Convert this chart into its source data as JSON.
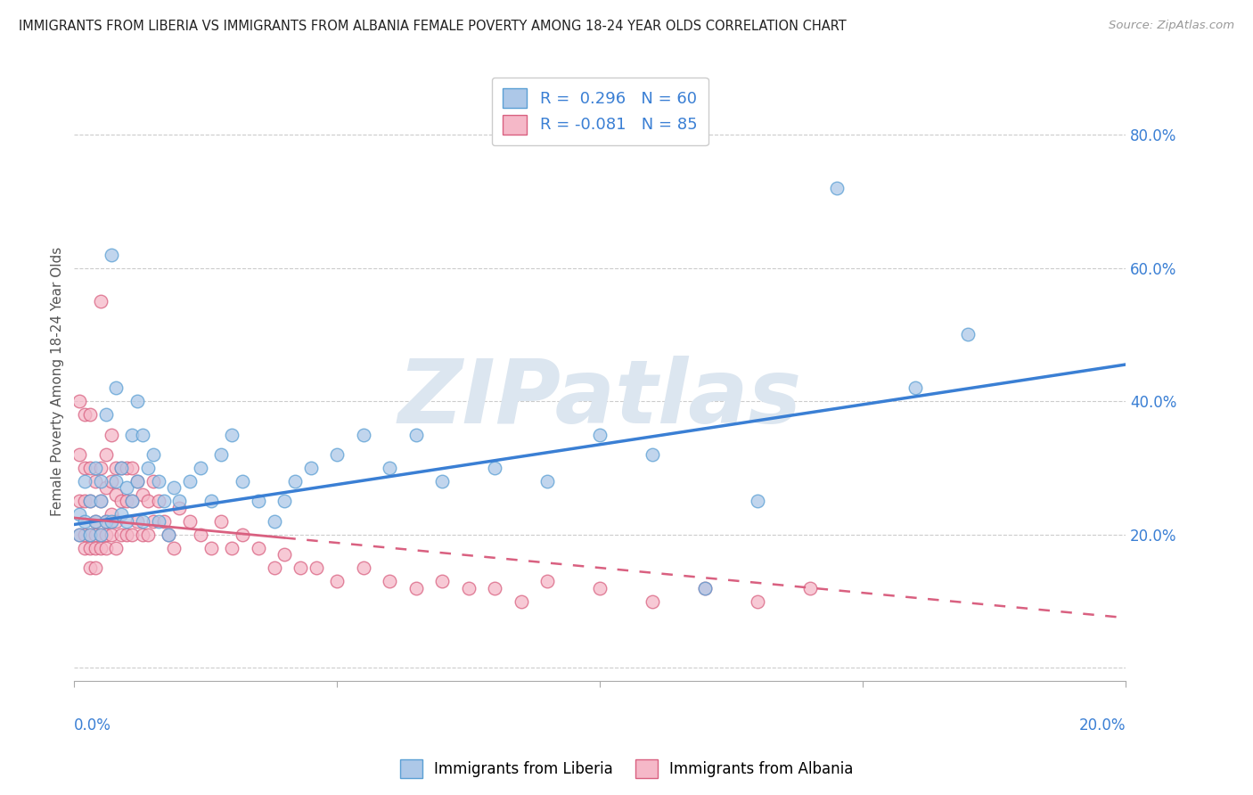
{
  "title": "IMMIGRANTS FROM LIBERIA VS IMMIGRANTS FROM ALBANIA FEMALE POVERTY AMONG 18-24 YEAR OLDS CORRELATION CHART",
  "source": "Source: ZipAtlas.com",
  "ylabel": "Female Poverty Among 18-24 Year Olds",
  "ytick_vals": [
    0.0,
    0.2,
    0.4,
    0.6,
    0.8
  ],
  "xlim": [
    0,
    0.2
  ],
  "ylim": [
    -0.02,
    0.88
  ],
  "liberia_R": 0.296,
  "liberia_N": 60,
  "albania_R": -0.081,
  "albania_N": 85,
  "liberia_color": "#adc8e8",
  "liberia_edge": "#5a9fd4",
  "albania_color": "#f5b8c8",
  "albania_edge": "#d96080",
  "line_liberia_color": "#3a7fd4",
  "line_albania_color": "#d96080",
  "watermark_color": "#dce6f0",
  "background_color": "#ffffff",
  "legend_label_liberia": "Immigrants from Liberia",
  "legend_label_albania": "Immigrants from Albania",
  "lib_line_x0": 0.0,
  "lib_line_y0": 0.215,
  "lib_line_x1": 0.2,
  "lib_line_y1": 0.455,
  "alb_line_solid_x0": 0.0,
  "alb_line_solid_y0": 0.225,
  "alb_line_solid_x1": 0.04,
  "alb_line_solid_y1": 0.195,
  "alb_line_dash_x0": 0.04,
  "alb_line_dash_y0": 0.195,
  "alb_line_dash_x1": 0.2,
  "alb_line_dash_y1": 0.075,
  "liberia_x": [
    0.001,
    0.001,
    0.002,
    0.002,
    0.003,
    0.003,
    0.004,
    0.004,
    0.005,
    0.005,
    0.005,
    0.006,
    0.006,
    0.007,
    0.007,
    0.008,
    0.008,
    0.009,
    0.009,
    0.01,
    0.01,
    0.011,
    0.011,
    0.012,
    0.012,
    0.013,
    0.013,
    0.014,
    0.015,
    0.016,
    0.016,
    0.017,
    0.018,
    0.019,
    0.02,
    0.022,
    0.024,
    0.026,
    0.028,
    0.03,
    0.032,
    0.035,
    0.038,
    0.04,
    0.042,
    0.045,
    0.05,
    0.055,
    0.06,
    0.065,
    0.07,
    0.08,
    0.09,
    0.1,
    0.11,
    0.12,
    0.13,
    0.145,
    0.16,
    0.17
  ],
  "liberia_y": [
    0.23,
    0.2,
    0.28,
    0.22,
    0.25,
    0.2,
    0.3,
    0.22,
    0.25,
    0.28,
    0.2,
    0.38,
    0.22,
    0.62,
    0.22,
    0.42,
    0.28,
    0.3,
    0.23,
    0.27,
    0.22,
    0.35,
    0.25,
    0.4,
    0.28,
    0.35,
    0.22,
    0.3,
    0.32,
    0.28,
    0.22,
    0.25,
    0.2,
    0.27,
    0.25,
    0.28,
    0.3,
    0.25,
    0.32,
    0.35,
    0.28,
    0.25,
    0.22,
    0.25,
    0.28,
    0.3,
    0.32,
    0.35,
    0.3,
    0.35,
    0.28,
    0.3,
    0.28,
    0.35,
    0.32,
    0.12,
    0.25,
    0.72,
    0.42,
    0.5
  ],
  "albania_x": [
    0.001,
    0.001,
    0.001,
    0.001,
    0.002,
    0.002,
    0.002,
    0.002,
    0.002,
    0.003,
    0.003,
    0.003,
    0.003,
    0.003,
    0.003,
    0.004,
    0.004,
    0.004,
    0.004,
    0.004,
    0.005,
    0.005,
    0.005,
    0.005,
    0.005,
    0.006,
    0.006,
    0.006,
    0.006,
    0.006,
    0.007,
    0.007,
    0.007,
    0.007,
    0.008,
    0.008,
    0.008,
    0.008,
    0.009,
    0.009,
    0.009,
    0.01,
    0.01,
    0.01,
    0.011,
    0.011,
    0.011,
    0.012,
    0.012,
    0.013,
    0.013,
    0.014,
    0.014,
    0.015,
    0.015,
    0.016,
    0.017,
    0.018,
    0.019,
    0.02,
    0.022,
    0.024,
    0.026,
    0.028,
    0.03,
    0.032,
    0.035,
    0.038,
    0.04,
    0.043,
    0.046,
    0.05,
    0.055,
    0.06,
    0.065,
    0.07,
    0.075,
    0.08,
    0.085,
    0.09,
    0.1,
    0.11,
    0.12,
    0.13,
    0.14
  ],
  "albania_y": [
    0.4,
    0.32,
    0.25,
    0.2,
    0.38,
    0.3,
    0.25,
    0.2,
    0.18,
    0.38,
    0.3,
    0.25,
    0.2,
    0.18,
    0.15,
    0.28,
    0.22,
    0.2,
    0.18,
    0.15,
    0.55,
    0.3,
    0.25,
    0.2,
    0.18,
    0.32,
    0.27,
    0.22,
    0.2,
    0.18,
    0.35,
    0.28,
    0.23,
    0.2,
    0.3,
    0.26,
    0.22,
    0.18,
    0.3,
    0.25,
    0.2,
    0.3,
    0.25,
    0.2,
    0.3,
    0.25,
    0.2,
    0.28,
    0.22,
    0.26,
    0.2,
    0.25,
    0.2,
    0.28,
    0.22,
    0.25,
    0.22,
    0.2,
    0.18,
    0.24,
    0.22,
    0.2,
    0.18,
    0.22,
    0.18,
    0.2,
    0.18,
    0.15,
    0.17,
    0.15,
    0.15,
    0.13,
    0.15,
    0.13,
    0.12,
    0.13,
    0.12,
    0.12,
    0.1,
    0.13,
    0.12,
    0.1,
    0.12,
    0.1,
    0.12
  ]
}
